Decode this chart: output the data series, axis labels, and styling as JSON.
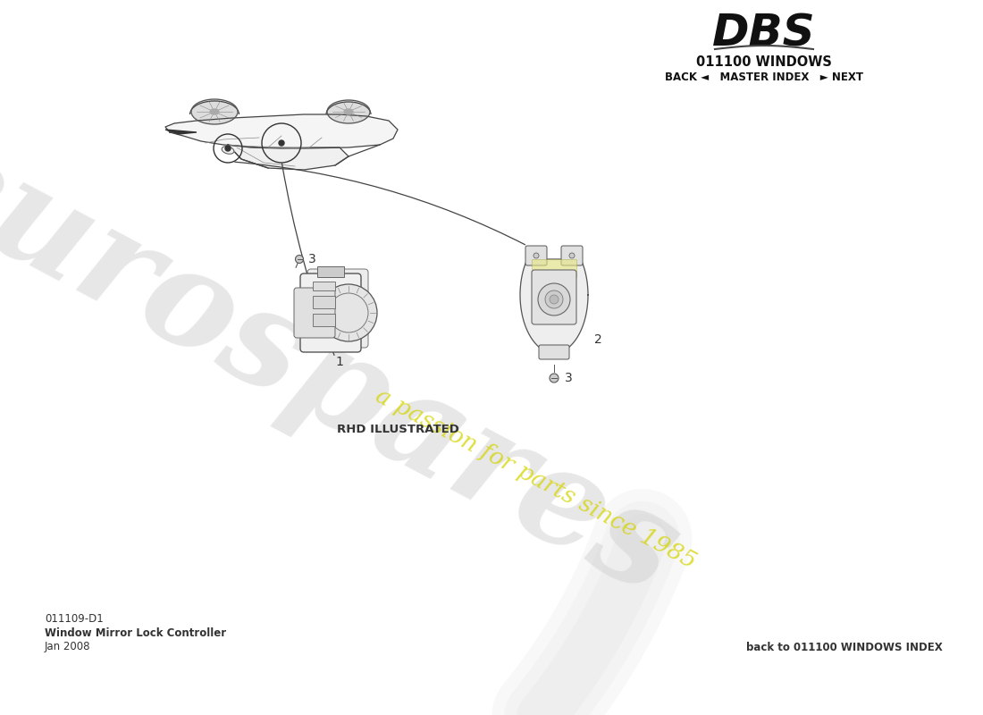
{
  "bg_color": "#ffffff",
  "watermark_text": "eurospares",
  "watermark_subtext": "a passion for parts since 1985",
  "watermark_color": "#cccccc",
  "watermark_yellow": "#d4d400",
  "title_dbs": "DBS",
  "subtitle_windows": "011100 WINDOWS",
  "nav_text": "BACK ◄   MASTER INDEX   ► NEXT",
  "part_id": "011109-D1",
  "part_name": "Window Mirror Lock Controller",
  "part_date": "Jan 2008",
  "back_link": "back to 011100 WINDOWS INDEX",
  "rhd_label": "RHD ILLUSTRATED",
  "label_1": "1",
  "label_2": "2",
  "label_3a": "3",
  "label_3b": "3",
  "line_color": "#555555",
  "part_color": "#666666"
}
